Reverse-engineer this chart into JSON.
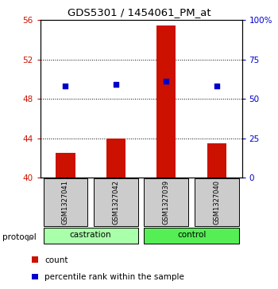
{
  "title": "GDS5301 / 1454061_PM_at",
  "samples": [
    "GSM1327041",
    "GSM1327042",
    "GSM1327039",
    "GSM1327040"
  ],
  "bar_values": [
    42.5,
    44.0,
    55.5,
    43.5
  ],
  "bar_baseline": 40,
  "blue_values": [
    49.3,
    49.5,
    49.8,
    49.3
  ],
  "ylim_left": [
    40,
    56
  ],
  "ylim_right": [
    0,
    100
  ],
  "yticks_left": [
    40,
    44,
    48,
    52,
    56
  ],
  "yticks_right": [
    0,
    25,
    50,
    75,
    100
  ],
  "ytick_labels_right": [
    "0",
    "25",
    "50",
    "75",
    "100%"
  ],
  "bar_color": "#cc1100",
  "blue_color": "#0000cc",
  "castration_color": "#aaffaa",
  "control_color": "#55ee55",
  "sample_box_color": "#cccccc",
  "legend_count_label": "count",
  "legend_pct_label": "percentile rank within the sample",
  "protocol_label": "protocol",
  "group_info": [
    [
      "castration",
      0,
      1
    ],
    [
      "control",
      2,
      3
    ]
  ]
}
